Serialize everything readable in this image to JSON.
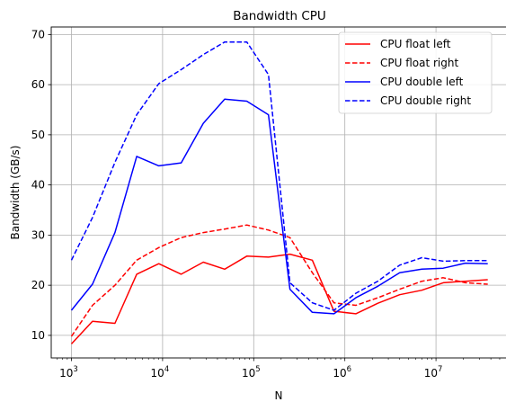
{
  "chart_data": {
    "type": "line",
    "title": "Bandwidth CPU",
    "xlabel": "N",
    "ylabel": "Bandwidth (GB/s)",
    "xscale": "log",
    "xlim": [
      600,
      60000000
    ],
    "ylim": [
      5.5,
      71.5
    ],
    "grid": true,
    "legend_position": "top-right",
    "x_ticks": [
      {
        "value": 1000,
        "base": "10",
        "exp": "3"
      },
      {
        "value": 10000,
        "base": "10",
        "exp": "4"
      },
      {
        "value": 100000,
        "base": "10",
        "exp": "5"
      },
      {
        "value": 1000000,
        "base": "10",
        "exp": "6"
      },
      {
        "value": 10000000,
        "base": "10",
        "exp": "7"
      }
    ],
    "y_ticks": [
      10,
      20,
      30,
      40,
      50,
      60,
      70
    ],
    "x": [
      1000,
      1700,
      3000,
      5200,
      9100,
      16000,
      28000,
      48000,
      84000,
      145000,
      250000,
      440000,
      760000,
      1320000,
      2300000,
      4000000,
      7000000,
      12000000,
      21000000,
      37000000
    ],
    "series": [
      {
        "name": "CPU float left",
        "color": "#ff0000",
        "style": "solid",
        "values": [
          8.3,
          12.8,
          12.4,
          22.2,
          24.3,
          22.2,
          24.6,
          23.2,
          25.8,
          25.6,
          26.2,
          25.0,
          14.8,
          14.3,
          16.4,
          18.1,
          19.0,
          20.5,
          20.8,
          21.1
        ]
      },
      {
        "name": "CPU float right",
        "color": "#ff0000",
        "style": "dashed",
        "values": [
          9.8,
          16.0,
          20.0,
          25.0,
          27.5,
          29.5,
          30.5,
          31.2,
          32.0,
          31.0,
          29.5,
          22.5,
          16.5,
          16.0,
          17.5,
          19.2,
          20.8,
          21.5,
          20.5,
          20.2
        ]
      },
      {
        "name": "CPU double left",
        "color": "#0000ff",
        "style": "solid",
        "values": [
          15.0,
          20.2,
          30.5,
          45.7,
          43.8,
          44.4,
          52.3,
          57.1,
          56.7,
          54.0,
          19.2,
          14.6,
          14.3,
          17.5,
          19.8,
          22.5,
          23.2,
          23.4,
          24.4,
          24.3
        ]
      },
      {
        "name": "CPU double right",
        "color": "#0000ff",
        "style": "dashed",
        "values": [
          25.0,
          33.5,
          44.5,
          54.0,
          60.2,
          63.0,
          66.0,
          68.5,
          68.5,
          62.0,
          20.5,
          16.5,
          15.0,
          18.4,
          20.8,
          24.0,
          25.5,
          24.8,
          24.9,
          24.9
        ]
      }
    ]
  }
}
